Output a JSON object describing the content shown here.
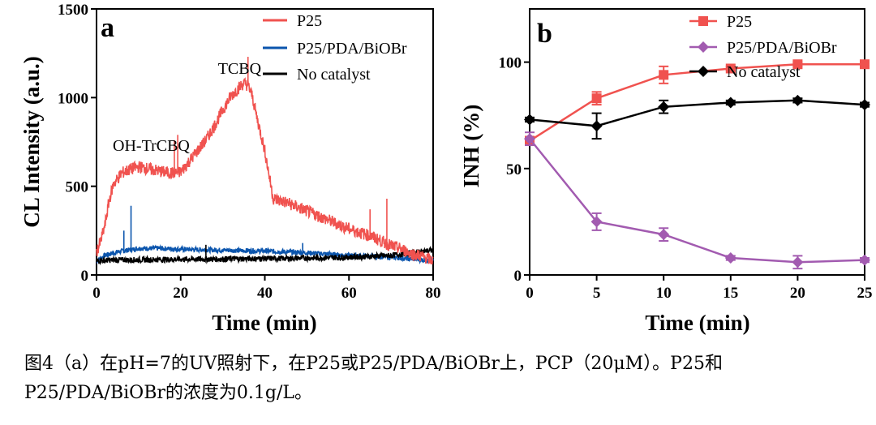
{
  "colors": {
    "p25": "#f0524f",
    "p25pda": "#0b55ad",
    "nocat": "#000000",
    "p25b": "#f0524f",
    "p25pda_b": "#a25bb0",
    "nocat_b": "#000000"
  },
  "chart_data": [
    {
      "type": "line",
      "panel_label": "a",
      "xlabel": "Time (min)",
      "ylabel": "CL Intensity (a.u.)",
      "xlim": [
        0,
        80
      ],
      "ylim": [
        0,
        1500
      ],
      "xticks": [
        0,
        20,
        40,
        60,
        80
      ],
      "yticks": [
        0,
        500,
        1000,
        1500
      ],
      "legend": [
        "P25",
        "P25/PDA/BiOBr",
        "No catalyst"
      ],
      "legend_position": "top-right",
      "annotations": [
        {
          "text": "TCBQ",
          "x": 34,
          "y": 1135
        },
        {
          "text": "OH-TrCBQ",
          "x": 13,
          "y": 700
        }
      ],
      "series": [
        {
          "name": "P25",
          "x": [
            0,
            1,
            2,
            3,
            4,
            6,
            8,
            10,
            12,
            14,
            16,
            18,
            20,
            22,
            24,
            26,
            28,
            30,
            32,
            34,
            35,
            36,
            37,
            38,
            40,
            42,
            45,
            50,
            55,
            60,
            65,
            70,
            72,
            75,
            78,
            80
          ],
          "y": [
            130,
            190,
            280,
            420,
            510,
            575,
            595,
            610,
            600,
            590,
            580,
            575,
            580,
            640,
            700,
            760,
            840,
            930,
            1010,
            1060,
            1080,
            1070,
            1010,
            900,
            700,
            430,
            410,
            360,
            310,
            260,
            220,
            165,
            150,
            120,
            100,
            80
          ]
        },
        {
          "name": "P25/PDA/BiOBr",
          "x": [
            0,
            2,
            5,
            10,
            15,
            20,
            30,
            40,
            50,
            60,
            70,
            80
          ],
          "y": [
            80,
            110,
            130,
            150,
            150,
            145,
            140,
            135,
            125,
            110,
            100,
            80
          ]
        },
        {
          "name": "No catalyst",
          "x": [
            0,
            5,
            10,
            20,
            30,
            40,
            50,
            60,
            70,
            75,
            80
          ],
          "y": [
            80,
            85,
            85,
            88,
            90,
            92,
            95,
            100,
            110,
            125,
            140
          ]
        }
      ]
    },
    {
      "type": "line",
      "panel_label": "b",
      "xlabel": "Time (min)",
      "ylabel": "INH (%)",
      "xlim": [
        0,
        25
      ],
      "ylim": [
        0,
        125
      ],
      "xticks": [
        0,
        5,
        10,
        15,
        20,
        25
      ],
      "yticks": [
        0,
        50,
        100
      ],
      "legend": [
        "P25",
        "P25/PDA/BiOBr",
        "No catalyst"
      ],
      "legend_position": "top-right",
      "series": [
        {
          "name": "P25",
          "marker": "square",
          "x": [
            0,
            5,
            10,
            15,
            20,
            25
          ],
          "y": [
            63,
            83,
            94,
            97,
            99,
            99
          ],
          "err": [
            2,
            3,
            4,
            1,
            1,
            1
          ]
        },
        {
          "name": "P25/PDA/BiOBr",
          "marker": "diamond",
          "x": [
            0,
            5,
            10,
            15,
            20,
            25
          ],
          "y": [
            64,
            25,
            19,
            8,
            6,
            7
          ],
          "err": [
            3,
            4,
            3,
            1,
            3,
            1
          ]
        },
        {
          "name": "No catalyst",
          "marker": "diamond",
          "x": [
            0,
            5,
            10,
            15,
            20,
            25
          ],
          "y": [
            73,
            70,
            79,
            81,
            82,
            80
          ],
          "err": [
            1,
            6,
            3,
            1,
            1,
            1
          ]
        }
      ]
    }
  ],
  "caption": {
    "line1": "图4（a）在pH=7的UV照射下，在P25或P25/PDA/BiOBr上，PCP（20μM）。P25和",
    "line2": "P25/PDA/BiOBr的浓度为0.1g/L。"
  }
}
